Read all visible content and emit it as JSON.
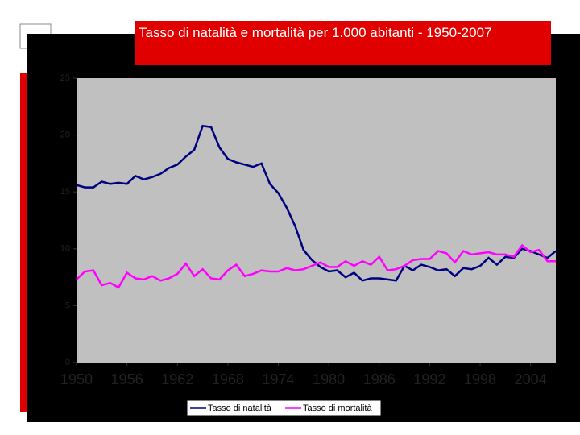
{
  "chart_data": {
    "type": "line",
    "title": "Tasso di natalità e mortalità per 1.000 abitanti - 1950-2007",
    "x": [
      1950,
      1951,
      1952,
      1953,
      1954,
      1955,
      1956,
      1957,
      1958,
      1959,
      1960,
      1961,
      1962,
      1963,
      1964,
      1965,
      1966,
      1967,
      1968,
      1969,
      1970,
      1971,
      1972,
      1973,
      1974,
      1975,
      1976,
      1977,
      1978,
      1979,
      1980,
      1981,
      1982,
      1983,
      1984,
      1985,
      1986,
      1987,
      1988,
      1989,
      1990,
      1991,
      1992,
      1993,
      1994,
      1995,
      1996,
      1997,
      1998,
      1999,
      2000,
      2001,
      2002,
      2003,
      2004,
      2005,
      2006,
      2007
    ],
    "xlim": [
      1950,
      2007
    ],
    "xticks": [
      1950,
      1956,
      1962,
      1968,
      1974,
      1980,
      1986,
      1992,
      1998,
      2004
    ],
    "ylim": [
      0,
      25
    ],
    "yticks": [
      0,
      5,
      10,
      15,
      20,
      25
    ],
    "series": [
      {
        "name": "Tasso di natalità",
        "color": "#000080",
        "values": [
          15.6,
          15.4,
          15.4,
          15.9,
          15.7,
          15.8,
          15.7,
          16.4,
          16.1,
          16.3,
          16.6,
          17.1,
          17.4,
          18.1,
          18.7,
          20.8,
          20.7,
          18.9,
          17.9,
          17.6,
          17.4,
          17.2,
          17.5,
          15.7,
          14.9,
          13.6,
          12.0,
          9.9,
          9.0,
          8.4,
          8.0,
          8.1,
          7.5,
          7.9,
          7.2,
          7.4,
          7.4,
          7.3,
          7.2,
          8.5,
          8.1,
          8.6,
          8.4,
          8.1,
          8.2,
          7.6,
          8.3,
          8.2,
          8.5,
          9.2,
          8.6,
          9.3,
          9.2,
          10.0,
          9.8,
          9.5,
          9.2,
          9.8
        ]
      },
      {
        "name": "Tasso di mortalità",
        "color": "#ff00ff",
        "values": [
          7.3,
          8.0,
          8.1,
          6.8,
          7.0,
          6.6,
          7.9,
          7.4,
          7.3,
          7.6,
          7.2,
          7.4,
          7.8,
          8.7,
          7.6,
          8.2,
          7.4,
          7.3,
          8.1,
          8.6,
          7.6,
          7.8,
          8.1,
          8.0,
          8.0,
          8.3,
          8.1,
          8.2,
          8.5,
          8.8,
          8.4,
          8.4,
          8.9,
          8.5,
          8.9,
          8.6,
          9.3,
          8.1,
          8.2,
          8.5,
          9.0,
          9.1,
          9.1,
          9.8,
          9.6,
          8.8,
          9.8,
          9.5,
          9.6,
          9.7,
          9.5,
          9.5,
          9.3,
          10.3,
          9.7,
          9.9,
          8.9,
          8.9
        ]
      }
    ]
  }
}
